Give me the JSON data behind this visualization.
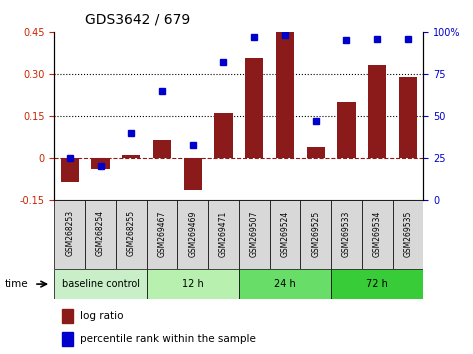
{
  "title": "GDS3642 / 679",
  "categories": [
    "GSM268253",
    "GSM268254",
    "GSM268255",
    "GSM269467",
    "GSM269469",
    "GSM269471",
    "GSM269507",
    "GSM269524",
    "GSM269525",
    "GSM269533",
    "GSM269534",
    "GSM269535"
  ],
  "log_ratio": [
    -0.085,
    -0.04,
    0.01,
    0.065,
    -0.115,
    0.16,
    0.355,
    0.45,
    0.04,
    0.2,
    0.33,
    0.29
  ],
  "percentile_rank": [
    25,
    20,
    40,
    65,
    33,
    82,
    97,
    98,
    47,
    95,
    96,
    96
  ],
  "groups": [
    {
      "label": "baseline control",
      "start": 0,
      "end": 3
    },
    {
      "label": "12 h",
      "start": 3,
      "end": 6
    },
    {
      "label": "24 h",
      "start": 6,
      "end": 9
    },
    {
      "label": "72 h",
      "start": 9,
      "end": 12
    }
  ],
  "group_colors": [
    "#c8efc8",
    "#b8f0b0",
    "#68dd68",
    "#38cc38"
  ],
  "bar_color": "#8B1A1A",
  "dot_color": "#0000CD",
  "ylim_left": [
    -0.15,
    0.45
  ],
  "ylim_right": [
    0,
    100
  ],
  "yticks_left": [
    -0.15,
    0,
    0.15,
    0.3,
    0.45
  ],
  "yticks_right": [
    0,
    25,
    50,
    75,
    100
  ],
  "ytick_labels_left": [
    "-0.15",
    "0",
    "0.15",
    "0.30",
    "0.45"
  ],
  "ytick_labels_right": [
    "0",
    "25",
    "50",
    "75",
    "100%"
  ],
  "hlines": [
    0.15,
    0.3
  ],
  "zero_line": 0.0,
  "left_color": "#cc2200",
  "right_color": "#0000CD",
  "time_label": "time",
  "legend_log_ratio": "log ratio",
  "legend_percentile": "percentile rank within the sample",
  "cell_color": "#d8d8d8"
}
